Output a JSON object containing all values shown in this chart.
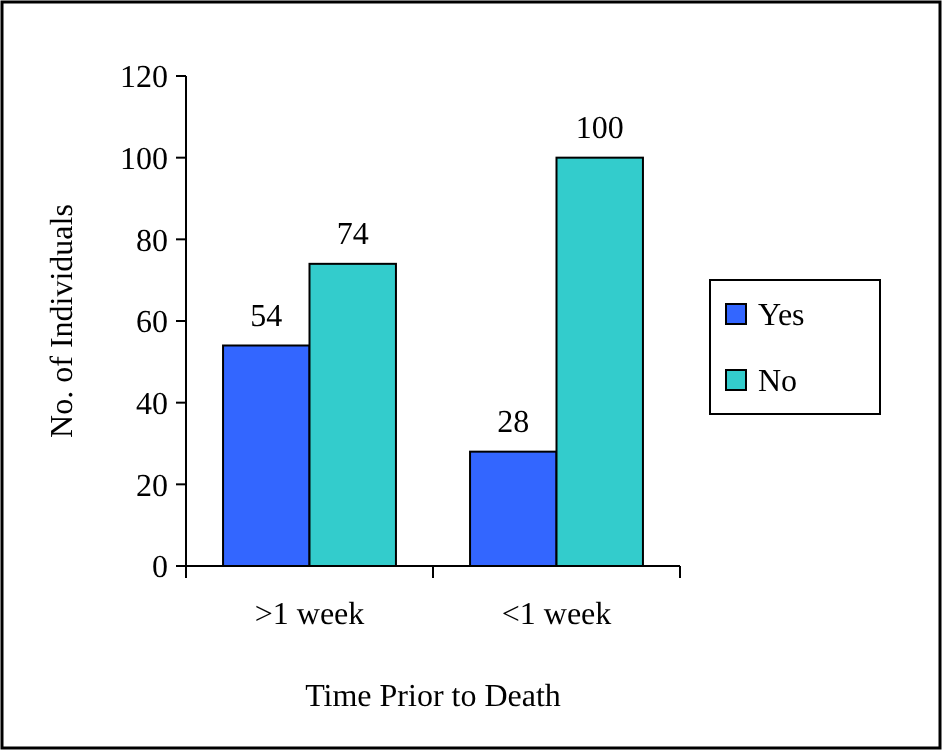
{
  "chart_data": {
    "type": "bar",
    "xlabel": "Time Prior to Death",
    "ylabel": "No. of Individuals",
    "categories": [
      ">1 week",
      "<1 week"
    ],
    "series": [
      {
        "name": "Yes",
        "color": "#3366ff",
        "values": [
          54,
          28
        ]
      },
      {
        "name": "No",
        "color": "#33cccc",
        "values": [
          74,
          100
        ]
      }
    ],
    "ylim": [
      0,
      120
    ],
    "yticks": [
      0,
      20,
      40,
      60,
      80,
      100,
      120
    ],
    "data_labels": true,
    "legend": "right",
    "grid": false
  }
}
